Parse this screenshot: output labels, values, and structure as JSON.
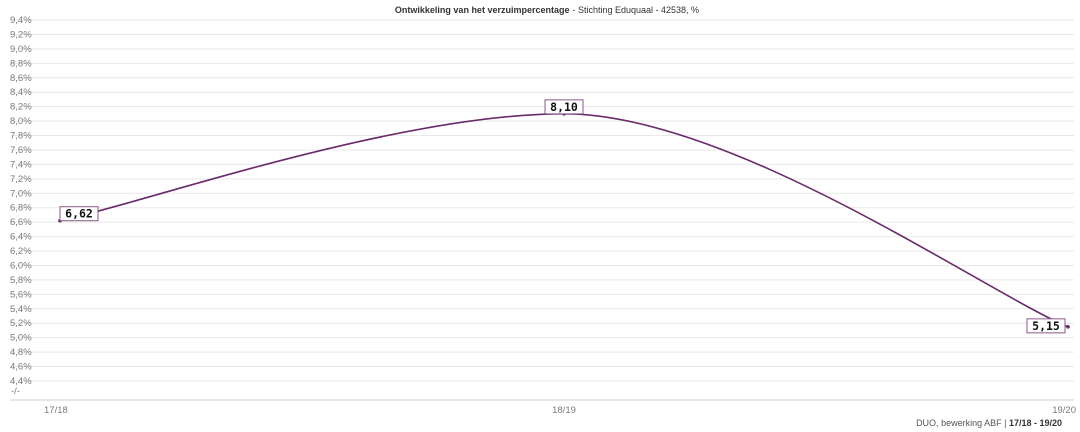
{
  "chart_data": {
    "type": "line",
    "title": "Ontwikkeling van het verzuimpercentage",
    "subtitle": "- Stichting Eduquaal - 42538, %",
    "categories": [
      "17/18",
      "18/19",
      "19/20"
    ],
    "series": [
      {
        "values": [
          6.62,
          8.1,
          5.15
        ]
      }
    ],
    "data_labels": [
      "6,62",
      "8,10",
      "5,15"
    ],
    "y_ticks": [
      "4,4%",
      "4,6%",
      "4,8%",
      "5,0%",
      "5,2%",
      "5,4%",
      "5,6%",
      "5,8%",
      "6,0%",
      "6,2%",
      "6,4%",
      "6,6%",
      "6,8%",
      "7,0%",
      "7,2%",
      "7,4%",
      "7,6%",
      "7,8%",
      "8,0%",
      "8,2%",
      "8,4%",
      "8,6%",
      "8,8%",
      "9,0%",
      "9,2%",
      "9,4%"
    ],
    "y_tick_values": [
      4.4,
      4.6,
      4.8,
      5.0,
      5.2,
      5.4,
      5.6,
      5.8,
      6.0,
      6.2,
      6.4,
      6.6,
      6.8,
      7.0,
      7.2,
      7.4,
      7.6,
      7.8,
      8.0,
      8.2,
      8.4,
      8.6,
      8.8,
      9.0,
      9.2,
      9.4
    ],
    "axis_break_label": "-/-",
    "ylim": [
      4.4,
      9.4
    ],
    "grid": true,
    "line_color": "#6b2a6b"
  },
  "footer": {
    "source": "DUO, bewerking ABF |",
    "period": "17/18 - 19/20"
  }
}
